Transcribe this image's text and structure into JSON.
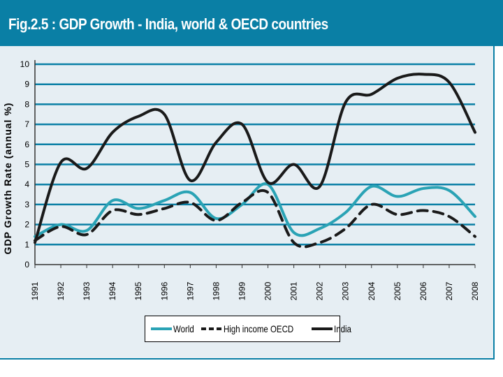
{
  "title": "Fig.2.5 : GDP  Growth - India, world & OECD countries",
  "chart_data": {
    "type": "line",
    "ylabel": "GDP Growth Rate (annual %)",
    "xlabel": "",
    "ylim": [
      0,
      10
    ],
    "yticks": [
      "0",
      "1",
      "2",
      "3",
      "4",
      "5",
      "6",
      "7",
      "8",
      "9",
      "10"
    ],
    "grid": true,
    "legend_position": "bottom-center",
    "categories": [
      "1991",
      "1992",
      "1993",
      "1994",
      "1995",
      "1996",
      "1997",
      "1998",
      "1999",
      "2000",
      "2001",
      "2002",
      "2003",
      "2004",
      "2005",
      "2006",
      "2007",
      "2008"
    ],
    "series": [
      {
        "name": "World",
        "color": "#2aa3b5",
        "dash": "solid",
        "values": [
          1.4,
          2.0,
          1.7,
          3.2,
          2.8,
          3.2,
          3.6,
          2.3,
          3.0,
          4.0,
          1.6,
          1.8,
          2.6,
          3.9,
          3.4,
          3.8,
          3.7,
          2.4
        ]
      },
      {
        "name": "High income OECD",
        "color": "#1a1a1a",
        "dash": "dashed",
        "values": [
          1.2,
          1.9,
          1.5,
          2.7,
          2.5,
          2.8,
          3.1,
          2.2,
          3.1,
          3.6,
          1.1,
          1.1,
          1.8,
          3.0,
          2.5,
          2.7,
          2.4,
          1.4
        ]
      },
      {
        "name": "India",
        "color": "#1a1a1a",
        "dash": "solid",
        "values": [
          1.1,
          5.1,
          4.8,
          6.6,
          7.4,
          7.5,
          4.2,
          6.1,
          7.0,
          4.1,
          5.0,
          3.9,
          8.1,
          8.5,
          9.3,
          9.5,
          9.1,
          6.6
        ]
      }
    ]
  }
}
